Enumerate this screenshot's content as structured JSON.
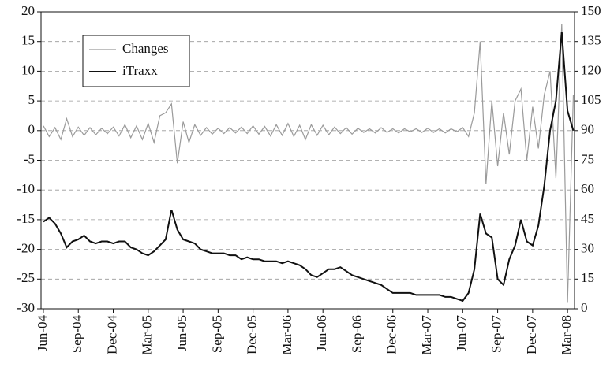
{
  "chart_data": {
    "type": "line",
    "x": [
      0,
      0.5,
      1,
      1.5,
      2,
      2.5,
      3,
      3.5,
      4,
      4.5,
      5,
      5.5,
      6,
      6.5,
      7,
      7.5,
      8,
      8.5,
      9,
      9.5,
      10,
      10.5,
      11,
      11.5,
      12,
      12.5,
      13,
      13.5,
      14,
      14.5,
      15,
      15.5,
      16,
      16.5,
      17,
      17.5,
      18,
      18.5,
      19,
      19.5,
      20,
      20.5,
      21,
      21.5,
      22,
      22.5,
      23,
      23.5,
      24,
      24.5,
      25,
      25.5,
      26,
      26.5,
      27,
      27.5,
      28,
      28.5,
      29,
      29.5,
      30,
      30.5,
      31,
      31.5,
      32,
      32.5,
      33,
      33.5,
      34,
      34.5,
      35,
      35.5,
      36,
      36.5,
      37,
      37.5,
      38,
      38.5,
      39,
      39.5,
      40,
      40.5,
      41,
      41.5,
      42,
      42.5,
      43,
      43.5,
      44,
      44.5,
      45,
      45.5
    ],
    "series": [
      {
        "name": "Changes",
        "color": "#9a9a9a",
        "axis": "y",
        "values": [
          0.8,
          -1,
          0.5,
          -1.5,
          2,
          -1,
          0.6,
          -0.8,
          0.5,
          -0.7,
          0.4,
          -0.5,
          0.6,
          -0.9,
          1,
          -1.2,
          0.8,
          -1.5,
          1.2,
          -2,
          2.5,
          3,
          4.5,
          -5.5,
          1.5,
          -2,
          1,
          -0.8,
          0.5,
          -0.6,
          0.4,
          -0.5,
          0.5,
          -0.4,
          0.6,
          -0.5,
          0.8,
          -0.6,
          0.7,
          -0.9,
          1,
          -0.8,
          1.2,
          -1,
          0.9,
          -1.5,
          1,
          -0.8,
          0.9,
          -0.7,
          0.6,
          -0.5,
          0.5,
          -0.6,
          0.4,
          -0.3,
          0.3,
          -0.4,
          0.5,
          -0.3,
          0.3,
          -0.4,
          0.3,
          -0.2,
          0.3,
          -0.3,
          0.4,
          -0.3,
          0.3,
          -0.4,
          0.3,
          -0.2,
          0.5,
          -1,
          3,
          15,
          -9,
          5,
          -6,
          3,
          -4,
          5,
          7,
          -5,
          4,
          -3,
          6,
          10,
          -8,
          18,
          -29,
          6
        ]
      },
      {
        "name": "iTraxx",
        "color": "#111111",
        "axis": "y2",
        "values": [
          44,
          46,
          43,
          38,
          31,
          34,
          35,
          37,
          34,
          33,
          34,
          34,
          33,
          34,
          34,
          31,
          30,
          28,
          27,
          29,
          32,
          35,
          50,
          40,
          35,
          34,
          33,
          30,
          29,
          28,
          28,
          28,
          27,
          27,
          25,
          26,
          25,
          25,
          24,
          24,
          24,
          23,
          24,
          23,
          22,
          20,
          17,
          16,
          18,
          20,
          20,
          21,
          19,
          17,
          16,
          15,
          14,
          13,
          12,
          10,
          8,
          8,
          8,
          8,
          7,
          7,
          7,
          7,
          7,
          6,
          6,
          5,
          4,
          8,
          20,
          48,
          38,
          36,
          15,
          12,
          25,
          32,
          45,
          34,
          32,
          42,
          62,
          90,
          105,
          140,
          100,
          90
        ]
      }
    ],
    "xlim": [
      -0.2,
      45.6
    ],
    "xticks": [
      {
        "value": 0,
        "label": "Jun-04"
      },
      {
        "value": 3,
        "label": "Sep-04"
      },
      {
        "value": 6,
        "label": "Dec-04"
      },
      {
        "value": 9,
        "label": "Mar-05"
      },
      {
        "value": 12,
        "label": "Jun-05"
      },
      {
        "value": 15,
        "label": "Sep-05"
      },
      {
        "value": 18,
        "label": "Dec-05"
      },
      {
        "value": 21,
        "label": "Mar-06"
      },
      {
        "value": 24,
        "label": "Jun-06"
      },
      {
        "value": 27,
        "label": "Sep-06"
      },
      {
        "value": 30,
        "label": "Dec-06"
      },
      {
        "value": 33,
        "label": "Mar-07"
      },
      {
        "value": 36,
        "label": "Jun-07"
      },
      {
        "value": 39,
        "label": "Sep-07"
      },
      {
        "value": 42,
        "label": "Dec-07"
      },
      {
        "value": 45,
        "label": "Mar-08"
      }
    ],
    "ylim": [
      -30,
      20
    ],
    "yticks": [
      -30,
      -25,
      -20,
      -15,
      -10,
      -5,
      0,
      5,
      10,
      15,
      20
    ],
    "y2lim": [
      0,
      150
    ],
    "y2ticks": [
      0,
      15,
      30,
      45,
      60,
      75,
      90,
      105,
      120,
      135,
      150
    ],
    "grid": true,
    "legend": "upper left"
  }
}
